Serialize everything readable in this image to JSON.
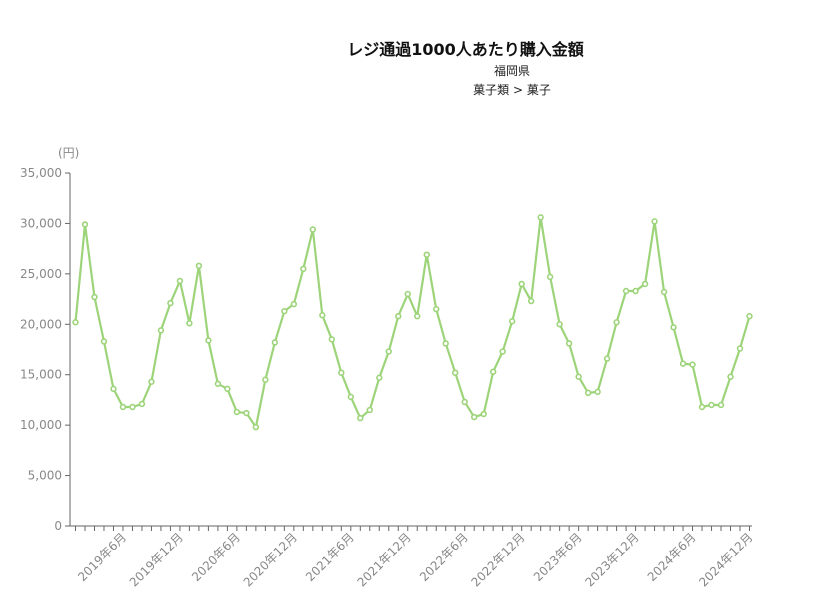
{
  "chart_data": {
    "type": "line",
    "title": "レジ通過1000人あたり購入金額",
    "subtitle": "福岡県",
    "subtitle2": "菓子類 > 菓子",
    "y_unit": "(円)",
    "ylim": [
      0,
      35000
    ],
    "y_ticks": [
      "0",
      "5,000",
      "10,000",
      "15,000",
      "20,000",
      "25,000",
      "30,000",
      "35,000"
    ],
    "y_tick_values": [
      0,
      5000,
      10000,
      15000,
      20000,
      25000,
      30000,
      35000
    ],
    "x_tick_labels": [
      "2019年6月",
      "2019年12月",
      "2020年6月",
      "2020年12月",
      "2021年6月",
      "2021年12月",
      "2022年6月",
      "2022年12月",
      "2023年6月",
      "2023年12月",
      "2024年6月",
      "2024年12月"
    ],
    "x_tick_label_indices": [
      5,
      11,
      17,
      23,
      29,
      35,
      41,
      47,
      53,
      59,
      65,
      71
    ],
    "x_start": "2019年1月",
    "x_end": "2024年12月",
    "line_color": "#9dd47a",
    "series": [
      {
        "values": [
          20200,
          29900,
          22700,
          18300,
          13600,
          11800,
          11800,
          12100,
          14300,
          19400,
          22100,
          24300,
          20100,
          25800,
          18400,
          14100,
          13600,
          11300,
          11200,
          9800,
          14500,
          18200,
          21300,
          22000,
          25500,
          29400,
          20900,
          18500,
          15200,
          12800,
          10700,
          11500,
          14700,
          17300,
          20800,
          23000,
          20800,
          26900,
          21500,
          18100,
          15200,
          12300,
          10800,
          11100,
          15300,
          17300,
          20300,
          24000,
          22300,
          30600,
          24700,
          20000,
          18100,
          14800,
          13200,
          13300,
          16600,
          20200,
          23300,
          23300,
          24000,
          30200,
          23200,
          19700,
          16100,
          16000,
          11800,
          12000,
          12000,
          14800,
          17600,
          20800
        ]
      }
    ]
  }
}
